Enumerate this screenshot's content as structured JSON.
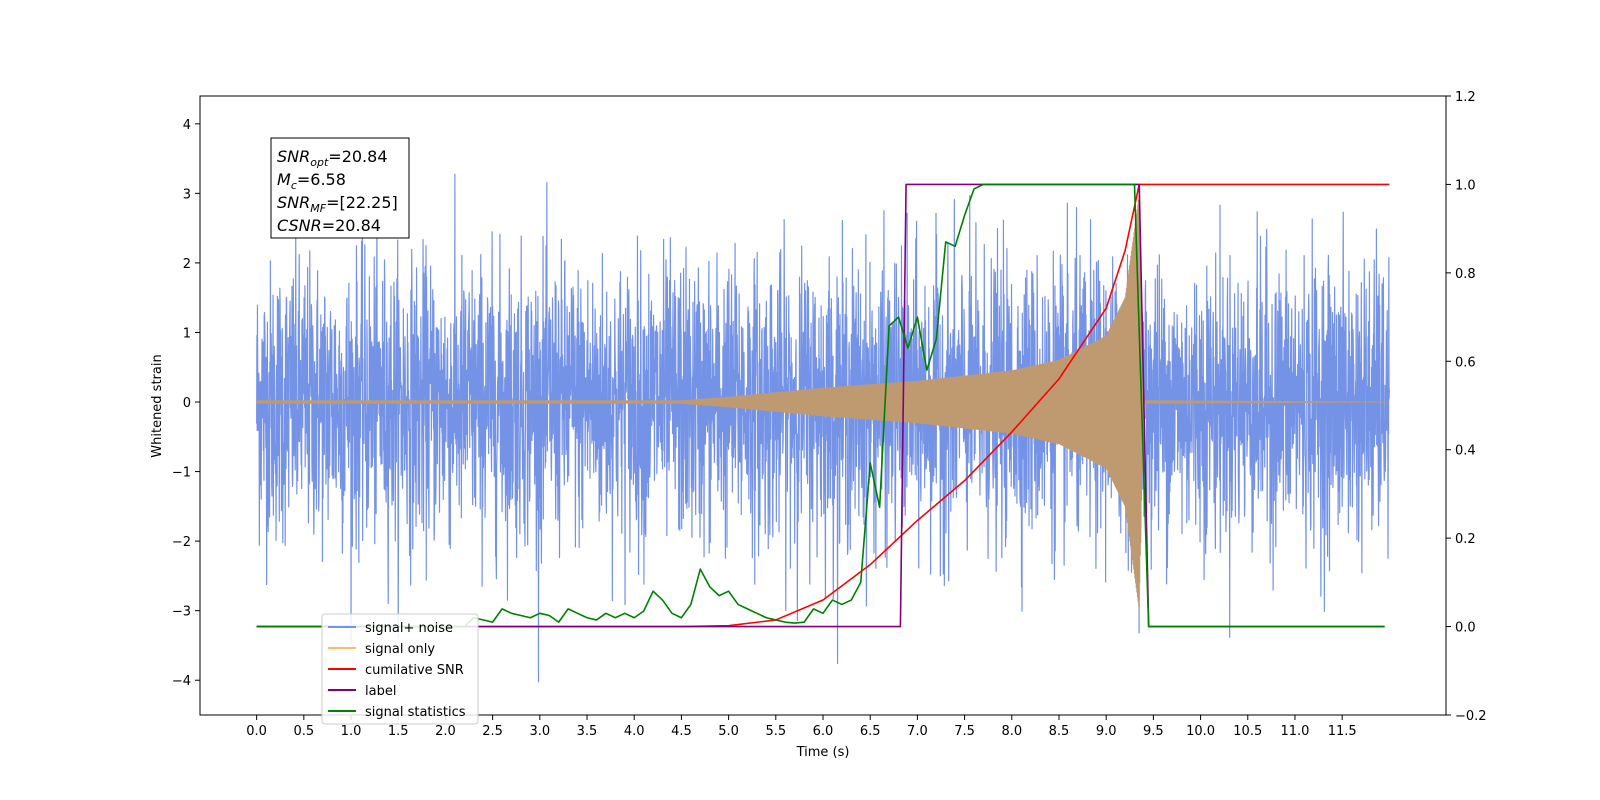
{
  "chart_data": {
    "type": "line",
    "xlabel": "Time (s)",
    "ylabel": "Whitened strain",
    "xlim": [
      -0.6,
      12.6
    ],
    "ylim": [
      -4.5,
      4.4
    ],
    "y2lim": [
      -0.2,
      1.2
    ],
    "grid": false,
    "legend_position": "lower-left",
    "x_ticks": [
      "0.0",
      "0.5",
      "1.0",
      "1.5",
      "2.0",
      "2.5",
      "3.0",
      "3.5",
      "4.0",
      "4.5",
      "5.0",
      "5.5",
      "6.0",
      "6.5",
      "7.0",
      "7.5",
      "8.0",
      "8.5",
      "9.0",
      "9.5",
      "10.0",
      "10.5",
      "11.0",
      "11.5"
    ],
    "y_ticks": [
      "4",
      "3",
      "2",
      "1",
      "0",
      "−1",
      "−2",
      "−3",
      "−4"
    ],
    "y2_ticks": [
      "1.2",
      "1.0",
      "0.8",
      "0.6",
      "0.4",
      "0.2",
      "0.0",
      "−0.2"
    ],
    "annotation": {
      "lines": [
        {
          "sym": "SNR",
          "sub": "opt",
          "val": "=20.84"
        },
        {
          "sym": "M",
          "sub": "c",
          "val": "=6.58"
        },
        {
          "sym": "SNR",
          "sub": "MF",
          "val": "=[22.25]"
        },
        {
          "sym": "CSNR",
          "sub": "",
          "val": "=20.84"
        }
      ]
    },
    "series": [
      {
        "name": "signal+ noise",
        "color": "#7593e6",
        "axis": "left",
        "kind": "noise",
        "time_range": [
          0,
          12
        ],
        "noise_std": 1.0
      },
      {
        "name": "signal only",
        "color": "#bf9a70",
        "axis": "left",
        "kind": "chirp",
        "merger_time": 9.35,
        "envelope": [
          [
            4.5,
            0.02
          ],
          [
            5.0,
            0.07
          ],
          [
            6.0,
            0.2
          ],
          [
            7.0,
            0.3
          ],
          [
            8.0,
            0.45
          ],
          [
            8.5,
            0.6
          ],
          [
            9.0,
            0.95
          ],
          [
            9.2,
            1.5
          ],
          [
            9.3,
            2.5
          ],
          [
            9.35,
            3.0
          ],
          [
            9.4,
            0.02
          ],
          [
            12.0,
            0.0
          ]
        ]
      },
      {
        "name": "cumilative SNR",
        "color": "#ff0000",
        "axis": "right",
        "points": [
          [
            0,
            0
          ],
          [
            4.5,
            0
          ],
          [
            5.0,
            0.002
          ],
          [
            5.5,
            0.015
          ],
          [
            6.0,
            0.06
          ],
          [
            6.5,
            0.14
          ],
          [
            7.0,
            0.24
          ],
          [
            7.5,
            0.33
          ],
          [
            8.0,
            0.44
          ],
          [
            8.5,
            0.56
          ],
          [
            9.0,
            0.72
          ],
          [
            9.2,
            0.85
          ],
          [
            9.35,
            1.0
          ],
          [
            12.0,
            1.0
          ]
        ]
      },
      {
        "name": "label",
        "color": "#800080",
        "axis": "right",
        "points": [
          [
            0,
            0
          ],
          [
            6.82,
            0
          ],
          [
            6.88,
            1.0
          ],
          [
            9.35,
            1.0
          ],
          [
            9.45,
            0
          ],
          [
            11.95,
            0
          ]
        ]
      },
      {
        "name": "signal statistics",
        "color": "#008000",
        "axis": "right",
        "points": [
          [
            0,
            0
          ],
          [
            2.2,
            0
          ],
          [
            2.3,
            0.02
          ],
          [
            2.5,
            0.01
          ],
          [
            2.6,
            0.04
          ],
          [
            2.7,
            0.03
          ],
          [
            2.8,
            0.025
          ],
          [
            2.9,
            0.02
          ],
          [
            3.0,
            0.03
          ],
          [
            3.1,
            0.025
          ],
          [
            3.2,
            0.01
          ],
          [
            3.3,
            0.04
          ],
          [
            3.4,
            0.03
          ],
          [
            3.5,
            0.02
          ],
          [
            3.6,
            0.015
          ],
          [
            3.7,
            0.03
          ],
          [
            3.8,
            0.02
          ],
          [
            3.9,
            0.03
          ],
          [
            4.0,
            0.02
          ],
          [
            4.1,
            0.035
          ],
          [
            4.2,
            0.08
          ],
          [
            4.3,
            0.06
          ],
          [
            4.4,
            0.03
          ],
          [
            4.5,
            0.02
          ],
          [
            4.6,
            0.05
          ],
          [
            4.7,
            0.13
          ],
          [
            4.8,
            0.09
          ],
          [
            4.9,
            0.07
          ],
          [
            5.0,
            0.08
          ],
          [
            5.1,
            0.05
          ],
          [
            5.2,
            0.04
          ],
          [
            5.3,
            0.03
          ],
          [
            5.4,
            0.02
          ],
          [
            5.5,
            0.015
          ],
          [
            5.6,
            0.01
          ],
          [
            5.7,
            0.008
          ],
          [
            5.8,
            0.01
          ],
          [
            5.9,
            0.04
          ],
          [
            6.0,
            0.03
          ],
          [
            6.1,
            0.06
          ],
          [
            6.2,
            0.05
          ],
          [
            6.3,
            0.06
          ],
          [
            6.4,
            0.1
          ],
          [
            6.5,
            0.37
          ],
          [
            6.6,
            0.27
          ],
          [
            6.7,
            0.68
          ],
          [
            6.8,
            0.7
          ],
          [
            6.9,
            0.63
          ],
          [
            7.0,
            0.7
          ],
          [
            7.1,
            0.58
          ],
          [
            7.2,
            0.65
          ],
          [
            7.3,
            0.87
          ],
          [
            7.4,
            0.86
          ],
          [
            7.5,
            0.93
          ],
          [
            7.6,
            0.99
          ],
          [
            7.7,
            1.0
          ],
          [
            9.3,
            1.0
          ],
          [
            9.45,
            0
          ],
          [
            11.95,
            0
          ]
        ]
      }
    ]
  }
}
